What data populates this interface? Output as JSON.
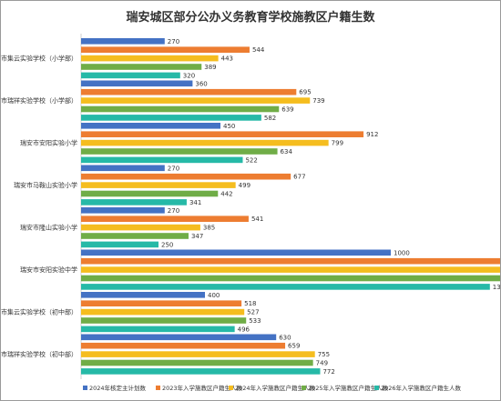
{
  "chart_data": {
    "type": "bar",
    "orientation": "horizontal",
    "title": "瑞安城区部分公办义务教育学校施教区户籍生数",
    "categories": [
      "瑞安市集云实验学校（小学部）",
      "瑞安市瑞祥实验学校（小学部）",
      "瑞安市安阳实验小学",
      "瑞安市马鞍山实验小学",
      "瑞安市隆山实验小学",
      "瑞安市安阳实验中学",
      "瑞安市集云实验学校（初中部）",
      "瑞安市瑞祥实验学校（初中部）"
    ],
    "series": [
      {
        "name": "2024年核定主计划数",
        "color": "#4472c4",
        "values": [
          270,
          360,
          450,
          270,
          270,
          1000,
          400,
          630
        ]
      },
      {
        "name": "2023年入学施教区户籍生人数",
        "color": "#ed7d31",
        "values": [
          544,
          695,
          912,
          677,
          541,
          1430,
          518,
          659
        ]
      },
      {
        "name": "2024年入学施教区户籍生人数",
        "color": "#f5bd1f",
        "values": [
          443,
          739,
          799,
          499,
          385,
          1458,
          527,
          755
        ]
      },
      {
        "name": "2025年入学施教区户籍生人数",
        "color": "#70ad47",
        "values": [
          389,
          639,
          634,
          442,
          347,
          1381,
          533,
          749
        ]
      },
      {
        "name": "2026年入学施教区户籍生人数",
        "color": "#26b9a7",
        "values": [
          320,
          582,
          522,
          341,
          250,
          1320,
          496,
          772
        ]
      }
    ],
    "xlim": [
      0,
      1600
    ],
    "grid": false,
    "legend_position": "bottom"
  }
}
